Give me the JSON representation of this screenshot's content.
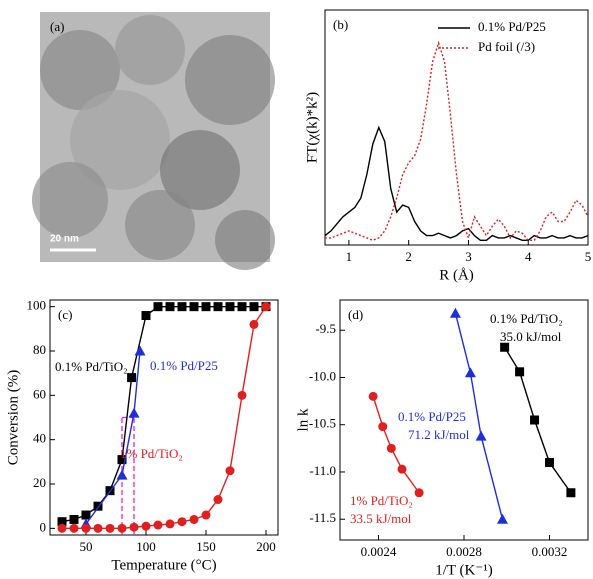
{
  "chart_data": [
    {
      "type": "image",
      "label": "(a)",
      "scale_bar": "20 nm"
    },
    {
      "type": "line",
      "label": "(b)",
      "x_label": "R (Å)",
      "y_label": "FT(χ(k)*k²)",
      "xlim": [
        0.6,
        5.0
      ],
      "xticks": [
        1,
        2,
        3,
        4,
        5
      ],
      "ylim": [
        0,
        1
      ],
      "legend": "upper right",
      "x": [
        0.6,
        0.7,
        0.8,
        0.9,
        1.0,
        1.1,
        1.2,
        1.3,
        1.4,
        1.5,
        1.6,
        1.7,
        1.8,
        1.9,
        2.0,
        2.1,
        2.2,
        2.3,
        2.4,
        2.5,
        2.6,
        2.7,
        2.8,
        2.9,
        3.0,
        3.1,
        3.2,
        3.3,
        3.4,
        3.5,
        3.6,
        3.7,
        3.8,
        3.9,
        4.0,
        4.1,
        4.2,
        4.3,
        4.4,
        4.5,
        4.6,
        4.7,
        4.8,
        4.9,
        5.0
      ],
      "series": [
        {
          "name": "0.1% Pd/P25",
          "color": "#000000",
          "dash": "solid",
          "values": [
            0.04,
            0.06,
            0.09,
            0.12,
            0.14,
            0.16,
            0.2,
            0.3,
            0.43,
            0.5,
            0.44,
            0.24,
            0.14,
            0.17,
            0.16,
            0.1,
            0.06,
            0.04,
            0.04,
            0.05,
            0.04,
            0.03,
            0.04,
            0.06,
            0.07,
            0.04,
            0.02,
            0.02,
            0.04,
            0.03,
            0.03,
            0.04,
            0.03,
            0.02,
            0.02,
            0.04,
            0.03,
            0.03,
            0.04,
            0.03,
            0.03,
            0.04,
            0.03,
            0.03,
            0.04
          ]
        },
        {
          "name": "Pd foil (/3)",
          "color": "#d62020",
          "dash": "dotted",
          "values": [
            0.03,
            0.03,
            0.04,
            0.05,
            0.06,
            0.05,
            0.04,
            0.03,
            0.02,
            0.03,
            0.06,
            0.12,
            0.2,
            0.3,
            0.35,
            0.38,
            0.45,
            0.6,
            0.78,
            0.86,
            0.78,
            0.55,
            0.3,
            0.1,
            0.03,
            0.12,
            0.08,
            0.04,
            0.08,
            0.11,
            0.08,
            0.03,
            0.06,
            0.05,
            0.02,
            0.02,
            0.06,
            0.12,
            0.14,
            0.1,
            0.1,
            0.14,
            0.19,
            0.17,
            0.12
          ]
        }
      ]
    },
    {
      "type": "scatter",
      "label": "(c)",
      "x_label": "Temperature (°C)",
      "y_label": "Conversion (%)",
      "xlim": [
        20,
        210
      ],
      "xticks": [
        50,
        100,
        150,
        200
      ],
      "ylim": [
        -3,
        103
      ],
      "yticks": [
        0,
        20,
        40,
        60,
        80,
        100
      ],
      "t50_lines": {
        "x": [
          80,
          90
        ],
        "y": 50,
        "color": "#e020e0"
      },
      "series": [
        {
          "name": "0.1% Pd/TiO₂",
          "color": "#000000",
          "marker": "square",
          "x": [
            30,
            40,
            50,
            60,
            70,
            80,
            88,
            100,
            110,
            120,
            130,
            140,
            150,
            160,
            170,
            180,
            190,
            200
          ],
          "values": [
            3,
            4,
            6,
            10,
            17,
            31,
            68,
            96,
            100,
            100,
            100,
            100,
            100,
            100,
            100,
            100,
            100,
            100
          ]
        },
        {
          "name": "0.1% Pd/P25",
          "color": "#1f2fd6",
          "marker": "triangle",
          "x": [
            50,
            80,
            90,
            95
          ],
          "values": [
            2,
            24,
            52,
            80
          ]
        },
        {
          "name": "1% Pd/TiO₂",
          "color": "#e02020",
          "marker": "circle",
          "x": [
            30,
            40,
            50,
            60,
            70,
            80,
            90,
            100,
            110,
            120,
            130,
            140,
            150,
            160,
            170,
            180,
            190,
            200
          ],
          "values": [
            0,
            0,
            0,
            0,
            0,
            0,
            0.5,
            1,
            1.5,
            2,
            3,
            4,
            6,
            13,
            26,
            60,
            92,
            100
          ]
        }
      ]
    },
    {
      "type": "scatter",
      "label": "(d)",
      "x_label": "1/T (K⁻¹)",
      "y_label": "ln k",
      "xlim": [
        0.00222,
        0.00338
      ],
      "xticks": [
        0.0024,
        0.0028,
        0.0032
      ],
      "ylim": [
        -11.72,
        -9.18
      ],
      "yticks": [
        {
          "value": -9.5,
          "label": "-9.5"
        },
        {
          "value": -10,
          "label": "-10.0"
        },
        {
          "value": -10.5,
          "label": "-10.5"
        },
        {
          "value": -11,
          "label": "-11.0"
        },
        {
          "value": -11.5,
          "label": "-11.5"
        }
      ],
      "series": [
        {
          "name": "1% Pd/TiO₂",
          "color": "#e02020",
          "marker": "circle",
          "x": [
            0.002375,
            0.00242,
            0.00246,
            0.00251,
            0.00259
          ],
          "values": [
            -10.2,
            -10.52,
            -10.75,
            -10.97,
            -11.22
          ]
        },
        {
          "name": "0.1% Pd/P25",
          "color": "#1f2fd6",
          "marker": "triangle",
          "x": [
            0.00276,
            0.00283,
            0.00288,
            0.00298
          ],
          "values": [
            -9.32,
            -9.95,
            -10.62,
            -11.5
          ]
        },
        {
          "name": "0.1% Pd/TiO₂",
          "color": "#000000",
          "marker": "square",
          "x": [
            0.00299,
            0.00306,
            0.00313,
            0.0032,
            0.0033
          ],
          "values": [
            -9.68,
            -9.94,
            -10.45,
            -10.9,
            -11.22
          ]
        }
      ],
      "annotations": [
        {
          "text": "0.1% Pd/TiO₂",
          "color": "#000000"
        },
        {
          "text": "35.0 kJ/mol",
          "color": "#000000"
        },
        {
          "text": "0.1% Pd/P25",
          "color": "#1f2fd6"
        },
        {
          "text": "71.2 kJ/mol",
          "color": "#1f2fd6"
        },
        {
          "text": "1% Pd/TiO₂",
          "color": "#e02020"
        },
        {
          "text": "33.5 kJ/mol",
          "color": "#e02020"
        }
      ]
    }
  ]
}
